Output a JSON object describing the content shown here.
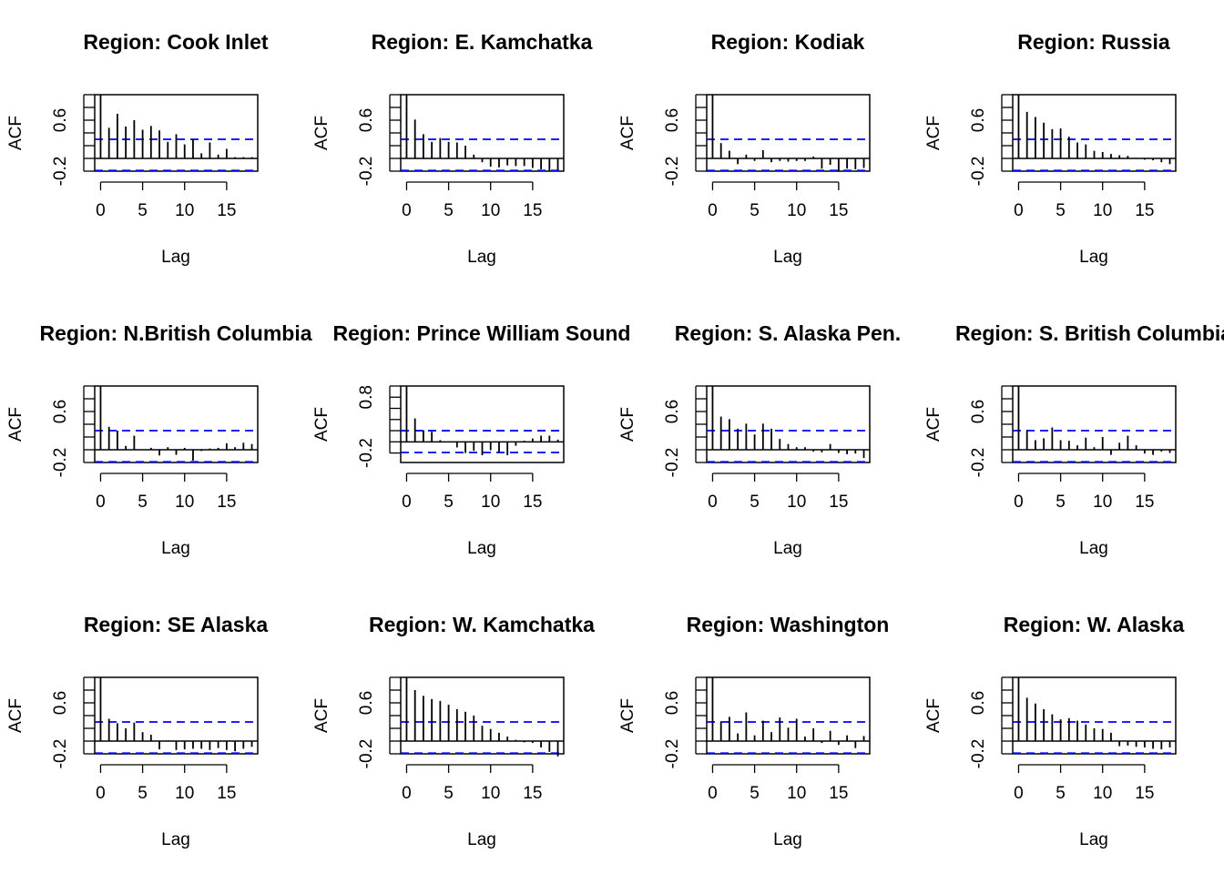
{
  "chart_data": [
    {
      "type": "bar",
      "title": "Region: Cook Inlet",
      "xlabel": "Lag",
      "ylabel": "ACF",
      "xticks": [
        0,
        5,
        10,
        15
      ],
      "yticks": [
        "-0.2",
        "0.6"
      ],
      "yticks_minor": [
        -0.2,
        0,
        0.2,
        0.4,
        0.6,
        0.8,
        1.0
      ],
      "xlim": [
        -0.7,
        18.7
      ],
      "ylim": [
        -0.2,
        1.0
      ],
      "ci": [
        0.3,
        -0.19
      ],
      "lags": [
        0,
        1,
        2,
        3,
        4,
        5,
        6,
        7,
        8,
        9,
        10,
        11,
        12,
        13,
        14,
        15,
        16,
        17,
        18
      ],
      "acf": [
        1.0,
        0.48,
        0.7,
        0.5,
        0.6,
        0.45,
        0.51,
        0.44,
        0.26,
        0.38,
        0.22,
        0.3,
        0.08,
        0.25,
        0.06,
        0.15,
        0.02,
        0.02,
        0.02
      ]
    },
    {
      "type": "bar",
      "title": "Region: E. Kamchatka",
      "xlabel": "Lag",
      "ylabel": "ACF",
      "xticks": [
        0,
        5,
        10,
        15
      ],
      "yticks": [
        "-0.2",
        "0.6"
      ],
      "yticks_minor": [
        -0.2,
        0,
        0.2,
        0.4,
        0.6,
        0.8,
        1.0
      ],
      "xlim": [
        -0.7,
        18.7
      ],
      "ylim": [
        -0.2,
        1.0
      ],
      "ci": [
        0.3,
        -0.19
      ],
      "lags": [
        0,
        1,
        2,
        3,
        4,
        5,
        6,
        7,
        8,
        9,
        10,
        11,
        12,
        13,
        14,
        15,
        16,
        17,
        18
      ],
      "acf": [
        1.0,
        0.61,
        0.38,
        0.26,
        0.32,
        0.26,
        0.25,
        0.2,
        0.06,
        -0.06,
        -0.13,
        -0.14,
        -0.11,
        -0.12,
        -0.12,
        -0.15,
        -0.17,
        -0.19,
        -0.18
      ]
    },
    {
      "type": "bar",
      "title": "Region: Kodiak",
      "xlabel": "Lag",
      "ylabel": "ACF",
      "xticks": [
        0,
        5,
        10,
        15
      ],
      "yticks": [
        "-0.2",
        "0.6"
      ],
      "yticks_minor": [
        -0.2,
        0,
        0.2,
        0.4,
        0.6,
        0.8,
        1.0
      ],
      "xlim": [
        -0.7,
        18.7
      ],
      "ylim": [
        -0.2,
        1.0
      ],
      "ci": [
        0.3,
        -0.19
      ],
      "lags": [
        0,
        1,
        2,
        3,
        4,
        5,
        6,
        7,
        8,
        9,
        10,
        11,
        12,
        13,
        14,
        15,
        16,
        17,
        18
      ],
      "acf": [
        1.0,
        0.24,
        0.12,
        -0.09,
        0.06,
        -0.04,
        0.13,
        -0.06,
        -0.04,
        -0.05,
        -0.04,
        -0.04,
        0.03,
        -0.16,
        -0.1,
        -0.21,
        -0.16,
        -0.17,
        -0.15
      ]
    },
    {
      "type": "bar",
      "title": "Region: Russia",
      "xlabel": "Lag",
      "ylabel": "ACF",
      "xticks": [
        0,
        5,
        10,
        15
      ],
      "yticks": [
        "-0.2",
        "0.6"
      ],
      "yticks_minor": [
        -0.2,
        0,
        0.2,
        0.4,
        0.6,
        0.8,
        1.0
      ],
      "xlim": [
        -0.7,
        18.7
      ],
      "ylim": [
        -0.2,
        1.0
      ],
      "ci": [
        0.3,
        -0.19
      ],
      "lags": [
        0,
        1,
        2,
        3,
        4,
        5,
        6,
        7,
        8,
        9,
        10,
        11,
        12,
        13,
        14,
        15,
        16,
        17,
        18
      ],
      "acf": [
        1.0,
        0.73,
        0.65,
        0.56,
        0.46,
        0.47,
        0.34,
        0.25,
        0.22,
        0.12,
        0.1,
        0.07,
        0.05,
        0.04,
        0.01,
        -0.02,
        -0.03,
        -0.06,
        -0.09
      ]
    },
    {
      "type": "bar",
      "title": "Region: N.British Columbia",
      "xlabel": "Lag",
      "ylabel": "ACF",
      "xticks": [
        0,
        5,
        10,
        15
      ],
      "yticks": [
        "-0.2",
        "0.6"
      ],
      "yticks_minor": [
        -0.2,
        0,
        0.2,
        0.4,
        0.6,
        0.8,
        1.0
      ],
      "xlim": [
        -0.7,
        18.7
      ],
      "ylim": [
        -0.2,
        1.0
      ],
      "ci": [
        0.3,
        -0.19
      ],
      "lags": [
        0,
        1,
        2,
        3,
        4,
        5,
        6,
        7,
        8,
        9,
        10,
        11,
        12,
        13,
        14,
        15,
        16,
        17,
        18
      ],
      "acf": [
        1.0,
        0.36,
        0.3,
        0.06,
        0.22,
        0.0,
        0.03,
        -0.09,
        0.04,
        -0.08,
        0.03,
        -0.17,
        -0.02,
        0.02,
        0.03,
        0.1,
        0.04,
        0.11,
        0.09
      ]
    },
    {
      "type": "bar",
      "title": "Region: Prince William Sound",
      "xlabel": "Lag",
      "ylabel": "ACF",
      "xticks": [
        0,
        5,
        10,
        15
      ],
      "yticks": [
        "-0.2",
        "0.8"
      ],
      "yticks_minor": [
        -0.2,
        0,
        0.2,
        0.4,
        0.6,
        0.8,
        1.0
      ],
      "xlim": [
        -0.7,
        18.7
      ],
      "ylim": [
        -0.37,
        1.0
      ],
      "ci": [
        0.2,
        -0.19
      ],
      "lags": [
        0,
        1,
        2,
        3,
        4,
        5,
        6,
        7,
        8,
        9,
        10,
        11,
        12,
        13,
        14,
        15,
        16,
        17,
        18
      ],
      "acf": [
        1.0,
        0.42,
        0.21,
        0.18,
        0.03,
        0.0,
        -0.1,
        -0.2,
        -0.16,
        -0.24,
        -0.15,
        -0.18,
        -0.24,
        -0.07,
        0.02,
        0.06,
        0.11,
        0.11,
        0.04
      ]
    },
    {
      "type": "bar",
      "title": "Region: S. Alaska Pen.",
      "xlabel": "Lag",
      "ylabel": "ACF",
      "xticks": [
        0,
        5,
        10,
        15
      ],
      "yticks": [
        "-0.2",
        "0.6"
      ],
      "yticks_minor": [
        -0.2,
        0,
        0.2,
        0.4,
        0.6,
        0.8,
        1.0
      ],
      "xlim": [
        -0.7,
        18.7
      ],
      "ylim": [
        -0.2,
        1.0
      ],
      "ci": [
        0.3,
        -0.19
      ],
      "lags": [
        0,
        1,
        2,
        3,
        4,
        5,
        6,
        7,
        8,
        9,
        10,
        11,
        12,
        13,
        14,
        15,
        16,
        17,
        18
      ],
      "acf": [
        1.0,
        0.52,
        0.48,
        0.33,
        0.41,
        0.24,
        0.41,
        0.33,
        0.17,
        0.09,
        0.04,
        0.04,
        -0.03,
        -0.04,
        0.09,
        -0.05,
        -0.07,
        -0.06,
        -0.13
      ]
    },
    {
      "type": "bar",
      "title": "Region: S. British Columbia",
      "xlabel": "Lag",
      "ylabel": "ACF",
      "xticks": [
        0,
        5,
        10,
        15
      ],
      "yticks": [
        "-0.2",
        "0.6"
      ],
      "yticks_minor": [
        -0.2,
        0,
        0.2,
        0.4,
        0.6,
        0.8,
        1.0
      ],
      "xlim": [
        -0.7,
        18.7
      ],
      "ylim": [
        -0.2,
        1.0
      ],
      "ci": [
        0.3,
        -0.19
      ],
      "lags": [
        0,
        1,
        2,
        3,
        4,
        5,
        6,
        7,
        8,
        9,
        10,
        11,
        12,
        13,
        14,
        15,
        16,
        17,
        18
      ],
      "acf": [
        1.0,
        0.31,
        0.15,
        0.18,
        0.35,
        0.15,
        0.14,
        0.07,
        0.19,
        0.04,
        0.2,
        -0.08,
        0.11,
        0.22,
        0.07,
        -0.06,
        -0.08,
        -0.03,
        -0.05
      ]
    },
    {
      "type": "bar",
      "title": "Region: SE Alaska",
      "xlabel": "Lag",
      "ylabel": "ACF",
      "xticks": [
        0,
        5,
        10,
        15
      ],
      "yticks": [
        "-0.2",
        "0.6"
      ],
      "yticks_minor": [
        -0.2,
        0,
        0.2,
        0.4,
        0.6,
        0.8,
        1.0
      ],
      "xlim": [
        -0.7,
        18.7
      ],
      "ylim": [
        -0.2,
        1.0
      ],
      "ci": [
        0.3,
        -0.19
      ],
      "lags": [
        0,
        1,
        2,
        3,
        4,
        5,
        6,
        7,
        8,
        9,
        10,
        11,
        12,
        13,
        14,
        15,
        16,
        17,
        18
      ],
      "acf": [
        1.0,
        0.35,
        0.28,
        0.2,
        0.29,
        0.14,
        0.1,
        -0.13,
        0.01,
        -0.14,
        -0.13,
        -0.12,
        -0.12,
        -0.14,
        -0.11,
        -0.14,
        -0.16,
        -0.12,
        -0.09
      ]
    },
    {
      "type": "bar",
      "title": "Region: W. Kamchatka",
      "xlabel": "Lag",
      "ylabel": "ACF",
      "xticks": [
        0,
        5,
        10,
        15
      ],
      "yticks": [
        "-0.2",
        "0.6"
      ],
      "yticks_minor": [
        -0.2,
        0,
        0.2,
        0.4,
        0.6,
        0.8,
        1.0
      ],
      "xlim": [
        -0.7,
        18.7
      ],
      "ylim": [
        -0.2,
        1.0
      ],
      "ci": [
        0.3,
        -0.19
      ],
      "lags": [
        0,
        1,
        2,
        3,
        4,
        5,
        6,
        7,
        8,
        9,
        10,
        11,
        12,
        13,
        14,
        15,
        16,
        17,
        18
      ],
      "acf": [
        1.0,
        0.8,
        0.71,
        0.66,
        0.63,
        0.57,
        0.5,
        0.46,
        0.4,
        0.24,
        0.19,
        0.13,
        0.07,
        0.02,
        -0.02,
        -0.03,
        -0.1,
        -0.17,
        -0.24
      ]
    },
    {
      "type": "bar",
      "title": "Region: Washington",
      "xlabel": "Lag",
      "ylabel": "ACF",
      "xticks": [
        0,
        5,
        10,
        15
      ],
      "yticks": [
        "-0.2",
        "0.6"
      ],
      "yticks_minor": [
        -0.2,
        0,
        0.2,
        0.4,
        0.6,
        0.8,
        1.0
      ],
      "xlim": [
        -0.7,
        18.7
      ],
      "ylim": [
        -0.2,
        1.0
      ],
      "ci": [
        0.3,
        -0.19
      ],
      "lags": [
        0,
        1,
        2,
        3,
        4,
        5,
        6,
        7,
        8,
        9,
        10,
        11,
        12,
        13,
        14,
        15,
        16,
        17,
        18
      ],
      "acf": [
        1.0,
        0.3,
        0.38,
        0.12,
        0.45,
        0.09,
        0.32,
        0.14,
        0.37,
        0.21,
        0.35,
        0.07,
        0.2,
        -0.03,
        0.16,
        -0.06,
        0.09,
        -0.11,
        0.08
      ]
    },
    {
      "type": "bar",
      "title": "Region: W. Alaska",
      "xlabel": "Lag",
      "ylabel": "ACF",
      "xticks": [
        0,
        5,
        10,
        15
      ],
      "yticks": [
        "-0.2",
        "0.6"
      ],
      "yticks_minor": [
        -0.2,
        0,
        0.2,
        0.4,
        0.6,
        0.8,
        1.0
      ],
      "xlim": [
        -0.7,
        18.7
      ],
      "ylim": [
        -0.2,
        1.0
      ],
      "ci": [
        0.3,
        -0.19
      ],
      "lags": [
        0,
        1,
        2,
        3,
        4,
        5,
        6,
        7,
        8,
        9,
        10,
        11,
        12,
        13,
        14,
        15,
        16,
        17,
        18
      ],
      "acf": [
        1.0,
        0.68,
        0.59,
        0.5,
        0.42,
        0.34,
        0.36,
        0.32,
        0.26,
        0.2,
        0.19,
        0.13,
        -0.08,
        -0.07,
        -0.09,
        -0.1,
        -0.12,
        -0.13,
        -0.1
      ]
    }
  ],
  "colors": {
    "bars": "#000000",
    "ci_line": "#0000ff",
    "axis": "#000000",
    "background": "#ffffff"
  }
}
